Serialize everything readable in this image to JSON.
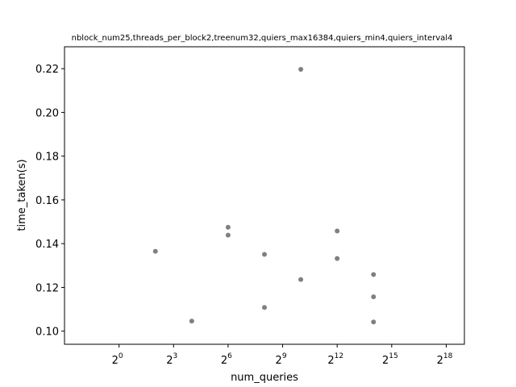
{
  "chart_data": {
    "type": "scatter",
    "title": "nblock_num25,threads_per_block2,treenum32,quiers_max16384,quiers_min4,quiers_interval4",
    "xlabel": "num_queries",
    "ylabel": "time_taken(s)",
    "x_scale": "log2",
    "xlim": [
      0.125,
      524288
    ],
    "ylim": [
      0.094,
      0.23
    ],
    "x_ticks": [
      {
        "value": 1,
        "base": "2",
        "exp": "0"
      },
      {
        "value": 8,
        "base": "2",
        "exp": "3"
      },
      {
        "value": 64,
        "base": "2",
        "exp": "6"
      },
      {
        "value": 512,
        "base": "2",
        "exp": "9"
      },
      {
        "value": 4096,
        "base": "2",
        "exp": "12"
      },
      {
        "value": 32768,
        "base": "2",
        "exp": "15"
      },
      {
        "value": 262144,
        "base": "2",
        "exp": "18"
      }
    ],
    "y_ticks": [
      {
        "value": 0.1,
        "label": "0.10"
      },
      {
        "value": 0.12,
        "label": "0.12"
      },
      {
        "value": 0.14,
        "label": "0.14"
      },
      {
        "value": 0.16,
        "label": "0.16"
      },
      {
        "value": 0.18,
        "label": "0.18"
      },
      {
        "value": 0.2,
        "label": "0.20"
      },
      {
        "value": 0.22,
        "label": "0.22"
      }
    ],
    "grid": false,
    "marker_color": "#808080",
    "points": [
      {
        "x": 4,
        "y": 0.1365
      },
      {
        "x": 16,
        "y": 0.1046
      },
      {
        "x": 64,
        "y": 0.1475
      },
      {
        "x": 64,
        "y": 0.1439
      },
      {
        "x": 256,
        "y": 0.1351
      },
      {
        "x": 256,
        "y": 0.1108
      },
      {
        "x": 1024,
        "y": 0.2197
      },
      {
        "x": 1024,
        "y": 0.1236
      },
      {
        "x": 4096,
        "y": 0.1458
      },
      {
        "x": 4096,
        "y": 0.1332
      },
      {
        "x": 16384,
        "y": 0.1259
      },
      {
        "x": 16384,
        "y": 0.1157
      },
      {
        "x": 16384,
        "y": 0.1042
      }
    ]
  }
}
